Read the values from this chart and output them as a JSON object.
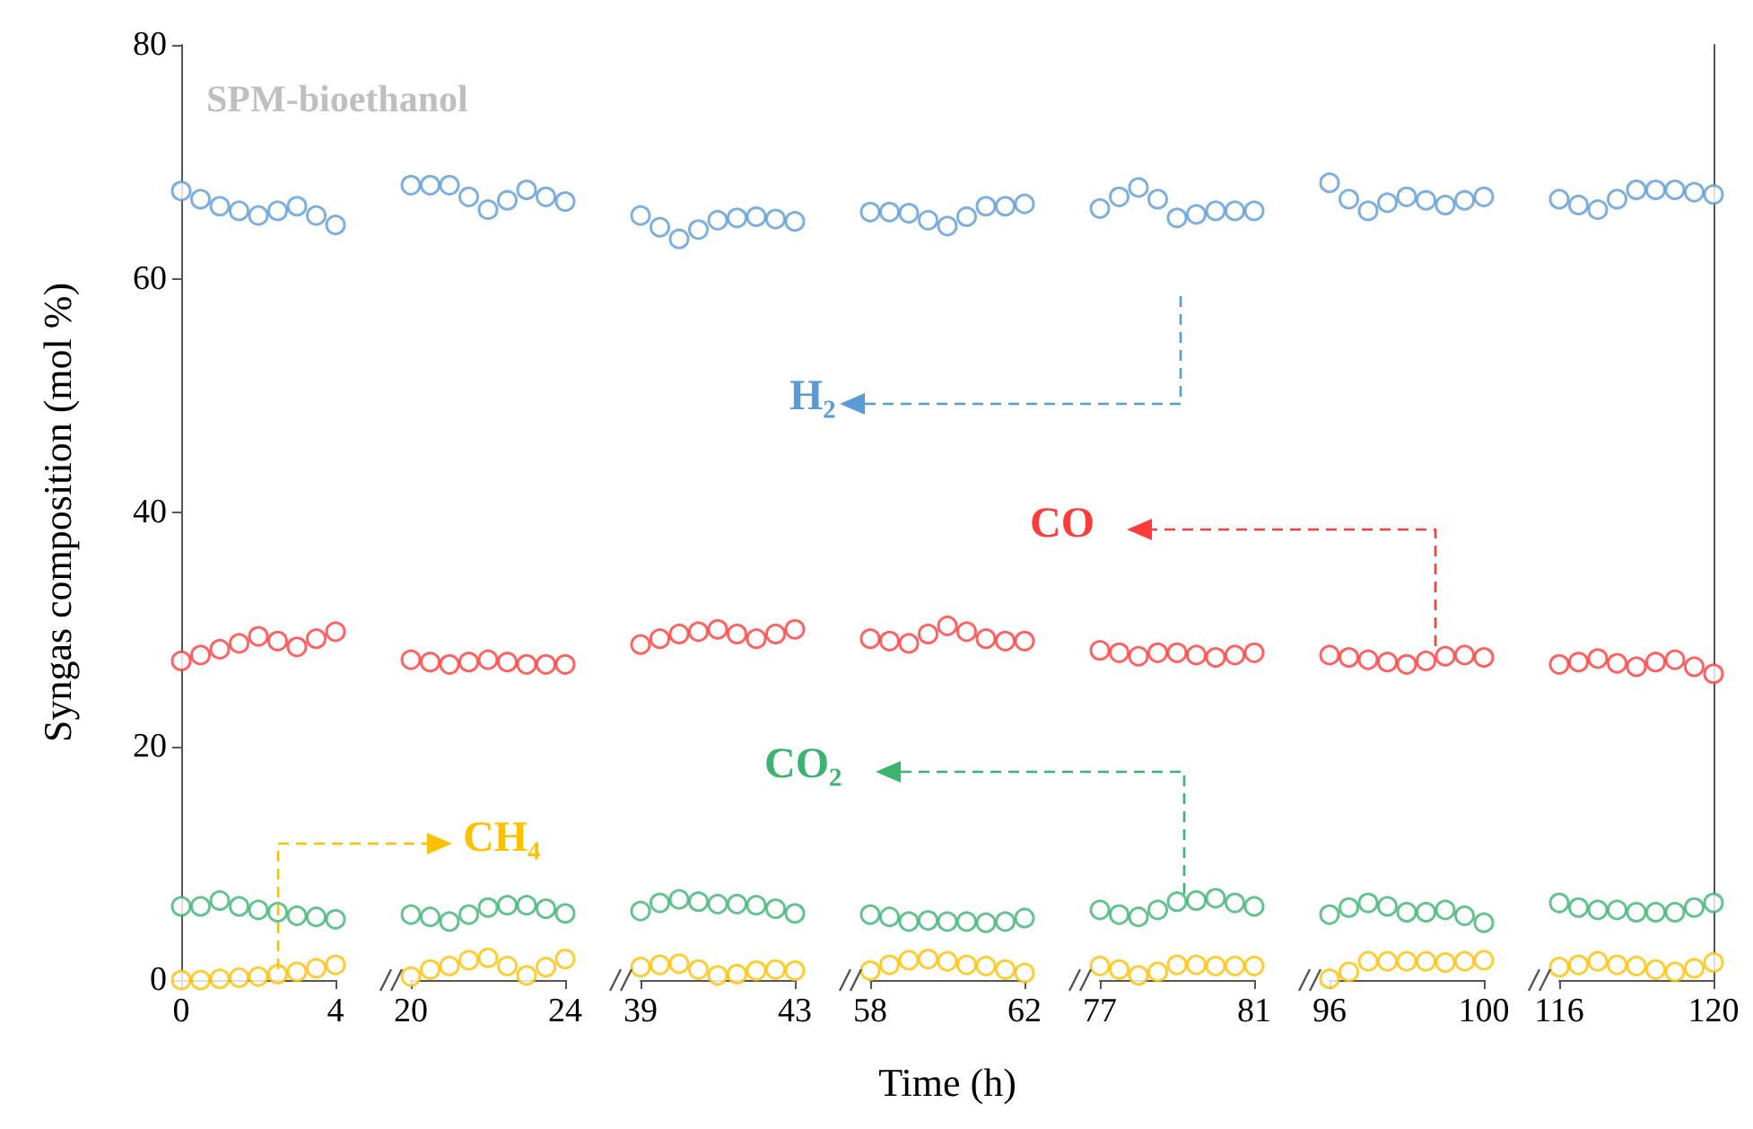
{
  "chart_data": [
    {
      "type": "scatter",
      "title": "SPM-bioethanol",
      "ylabel": "Syngas composition (mol %)",
      "x": [
        0,
        0.5,
        1,
        1.5,
        2,
        2.5,
        3,
        3.5,
        4
      ],
      "xlim": [
        0,
        4
      ],
      "xticks": [
        0,
        4
      ],
      "ylim": [
        0,
        80
      ],
      "yticks": [
        0,
        20,
        40,
        60,
        80
      ],
      "marker": "circle",
      "grid": false,
      "legend": false,
      "series": [
        {
          "color": "#5b9bd5",
          "values": [
            67.5,
            66.8,
            66.2,
            65.8,
            65.4,
            65.8,
            66.2,
            65.4,
            64.6
          ]
        },
        {
          "color": "#ff3b3b",
          "values": [
            27.3,
            27.8,
            28.3,
            28.8,
            29.4,
            29,
            28.5,
            29.2,
            29.8
          ]
        },
        {
          "color": "#3cb371",
          "values": [
            6.3,
            6.3,
            6.8,
            6.3,
            6,
            5.8,
            5.5,
            5.4,
            5.2
          ]
        },
        {
          "color": "#ffc000",
          "values": [
            0,
            0,
            0.1,
            0.2,
            0.3,
            0.5,
            0.7,
            1,
            1.3
          ]
        }
      ]
    },
    {
      "type": "scatter",
      "x": [
        20,
        20.5,
        21,
        21.5,
        22,
        22.5,
        23,
        23.5,
        24
      ],
      "xlim": [
        20,
        24
      ],
      "xticks": [
        20,
        24
      ],
      "ylim": [
        0,
        80
      ],
      "yticks": [
        0,
        20,
        40,
        60,
        80
      ],
      "tick_labels": "x",
      "marker": "circle",
      "grid": false,
      "legend": "bottom",
      "series": [
        {
          "color": "#5b9bd5",
          "values": [
            68,
            68,
            68,
            67,
            65.9,
            66.7,
            67.6,
            67,
            66.6
          ]
        },
        {
          "color": "#ff3b3b",
          "values": [
            27.4,
            27.2,
            27,
            27.2,
            27.4,
            27.2,
            27,
            27,
            27
          ]
        },
        {
          "color": "#3cb371",
          "values": [
            5.6,
            5.4,
            5,
            5.6,
            6.2,
            6.4,
            6.4,
            6.1,
            5.7
          ]
        },
        {
          "name": "CH₄",
          "color": "#ffc000",
          "values": [
            0.3,
            0.9,
            1.2,
            1.7,
            1.9,
            1.2,
            0.4,
            1.1,
            1.8
          ]
        }
      ]
    },
    {
      "type": "scatter",
      "x": [
        39,
        39.5,
        40,
        40.5,
        41,
        41.5,
        42,
        42.5,
        43
      ],
      "xlim": [
        39,
        43
      ],
      "xticks": [
        39,
        43
      ],
      "ylim": [
        0,
        80
      ],
      "yticks": [
        0,
        20,
        40,
        60,
        80
      ],
      "tick_labels": "x",
      "marker": "circle",
      "grid": false,
      "legend": "center",
      "series": [
        {
          "name": "H₂",
          "color": "#5b9bd5",
          "values": [
            65.4,
            64.4,
            63.4,
            64.2,
            65,
            65.2,
            65.3,
            65.1,
            64.9
          ]
        },
        {
          "color": "#ff3b3b",
          "values": [
            28.7,
            29.2,
            29.6,
            29.8,
            30,
            29.6,
            29.2,
            29.6,
            30
          ]
        },
        {
          "name": "CO₂",
          "color": "#3cb371",
          "values": [
            5.9,
            6.6,
            6.9,
            6.7,
            6.5,
            6.5,
            6.4,
            6.1,
            5.7
          ]
        },
        {
          "color": "#ffc000",
          "values": [
            1.1,
            1.3,
            1.4,
            0.9,
            0.4,
            0.5,
            0.8,
            0.9,
            0.8
          ]
        }
      ]
    },
    {
      "type": "scatter",
      "xlabel": "Time (h)",
      "x": [
        58,
        58.5,
        59,
        59.5,
        60,
        60.5,
        61,
        61.5,
        62
      ],
      "xlim": [
        58,
        62
      ],
      "xticks": [
        58,
        62
      ],
      "ylim": [
        0,
        80
      ],
      "yticks": [
        0,
        20,
        40,
        60,
        80
      ],
      "tick_labels": "x",
      "marker": "circle",
      "grid": false,
      "legend": "center",
      "series": [
        {
          "color": "#5b9bd5",
          "values": [
            65.7,
            65.7,
            65.6,
            65,
            64.5,
            65.3,
            66.2,
            66.2,
            66.4
          ]
        },
        {
          "name": "CO",
          "color": "#ff3b3b",
          "values": [
            29.2,
            29,
            28.8,
            29.6,
            30.3,
            29.8,
            29.2,
            29,
            29
          ]
        },
        {
          "color": "#3cb371",
          "values": [
            5.6,
            5.4,
            5,
            5.1,
            5,
            5,
            4.9,
            5,
            5.3
          ]
        },
        {
          "color": "#ffc000",
          "values": [
            0.8,
            1.3,
            1.7,
            1.8,
            1.6,
            1.3,
            1.2,
            0.9,
            0.6
          ]
        }
      ]
    },
    {
      "type": "scatter",
      "x": [
        77,
        77.5,
        78,
        78.5,
        79,
        79.5,
        80,
        80.5,
        81
      ],
      "xlim": [
        77,
        81
      ],
      "xticks": [
        77,
        81
      ],
      "ylim": [
        0,
        80
      ],
      "yticks": [
        0,
        20,
        40,
        60,
        80
      ],
      "tick_labels": "x",
      "marker": "circle",
      "grid": false,
      "legend": false,
      "series": [
        {
          "color": "#5b9bd5",
          "values": [
            66,
            67,
            67.8,
            66.8,
            65.2,
            65.5,
            65.8,
            65.8,
            65.8
          ]
        },
        {
          "color": "#ff3b3b",
          "values": [
            28.2,
            28,
            27.7,
            28,
            28,
            27.8,
            27.6,
            27.8,
            28
          ]
        },
        {
          "color": "#3cb371",
          "values": [
            6,
            5.6,
            5.4,
            6,
            6.7,
            6.8,
            7,
            6.6,
            6.3
          ]
        },
        {
          "color": "#ffc000",
          "values": [
            1.2,
            0.9,
            0.4,
            0.7,
            1.3,
            1.3,
            1.2,
            1.2,
            1.2
          ]
        }
      ]
    },
    {
      "type": "scatter",
      "x": [
        96,
        96.5,
        97,
        97.5,
        98,
        98.5,
        99,
        99.5,
        100
      ],
      "xlim": [
        96,
        100
      ],
      "xticks": [
        96,
        100
      ],
      "ylim": [
        0,
        80
      ],
      "yticks": [
        0,
        20,
        40,
        60,
        80
      ],
      "tick_labels": "x",
      "marker": "circle",
      "grid": false,
      "legend": false,
      "series": [
        {
          "color": "#5b9bd5",
          "values": [
            68.2,
            66.8,
            65.8,
            66.5,
            67,
            66.7,
            66.3,
            66.7,
            67
          ]
        },
        {
          "color": "#ff3b3b",
          "values": [
            27.8,
            27.6,
            27.4,
            27.2,
            27,
            27.3,
            27.7,
            27.8,
            27.6
          ]
        },
        {
          "color": "#3cb371",
          "values": [
            5.6,
            6.2,
            6.6,
            6.3,
            5.8,
            5.8,
            6,
            5.5,
            4.9
          ]
        },
        {
          "color": "#ffc000",
          "values": [
            0.1,
            0.7,
            1.6,
            1.6,
            1.6,
            1.6,
            1.5,
            1.6,
            1.7
          ]
        }
      ]
    },
    {
      "type": "scatter",
      "x": [
        116,
        116.5,
        117,
        117.5,
        118,
        118.5,
        119,
        119.5,
        120
      ],
      "xlim": [
        116,
        120
      ],
      "xticks": [
        116,
        120
      ],
      "ylim": [
        0,
        80
      ],
      "yticks": [
        0,
        20,
        40,
        60,
        80
      ],
      "tick_labels": "x",
      "marker": "circle",
      "grid": false,
      "legend": false,
      "series": [
        {
          "color": "#5b9bd5",
          "values": [
            66.8,
            66.3,
            65.9,
            66.8,
            67.6,
            67.6,
            67.6,
            67.4,
            67.2
          ]
        },
        {
          "color": "#ff3b3b",
          "values": [
            27,
            27.2,
            27.5,
            27.1,
            26.8,
            27.2,
            27.4,
            26.8,
            26.2
          ]
        },
        {
          "color": "#3cb371",
          "values": [
            6.6,
            6.2,
            6,
            6,
            5.8,
            5.8,
            5.8,
            6.2,
            6.6
          ]
        },
        {
          "color": "#ffc000",
          "values": [
            1.1,
            1.3,
            1.6,
            1.3,
            1.2,
            0.9,
            0.7,
            1,
            1.5
          ]
        }
      ]
    }
  ]
}
